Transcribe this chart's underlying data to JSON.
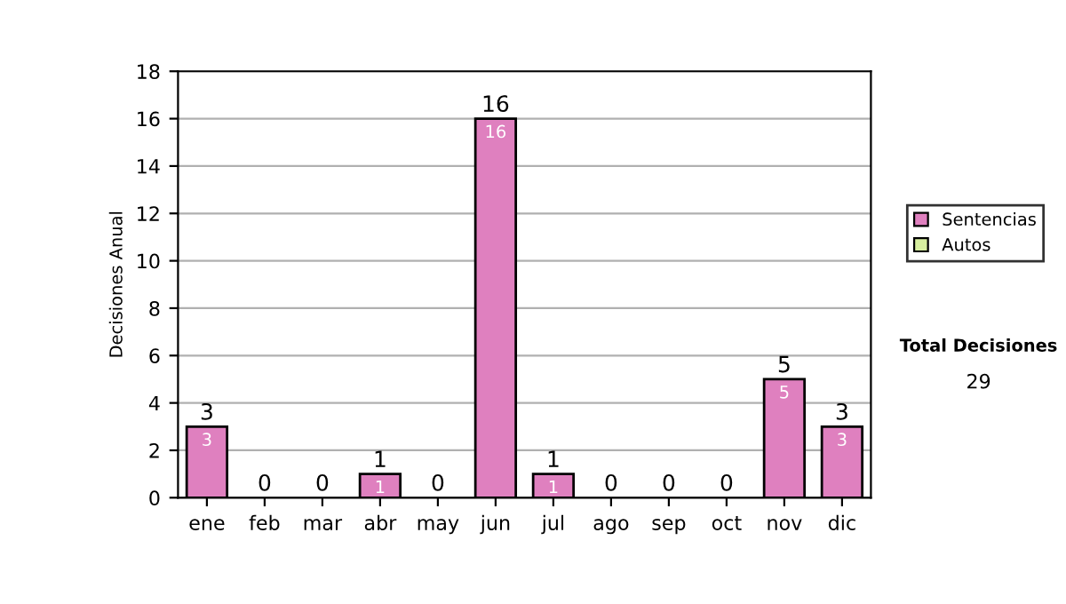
{
  "chart_data": {
    "type": "bar",
    "stacked": true,
    "ylabel": "Decisiones Anual",
    "categories": [
      "ene",
      "feb",
      "mar",
      "abr",
      "may",
      "jun",
      "jul",
      "ago",
      "sep",
      "oct",
      "nov",
      "dic"
    ],
    "series": [
      {
        "name": "Sentencias",
        "color": "#df80bf",
        "values": [
          3,
          0,
          0,
          1,
          0,
          16,
          1,
          0,
          0,
          0,
          5,
          3
        ],
        "value_labels": [
          "3",
          null,
          null,
          "1",
          null,
          "16",
          "1",
          null,
          null,
          null,
          "5",
          "3"
        ]
      },
      {
        "name": "Autos",
        "color": "#d8f0a0",
        "values": [
          0,
          0,
          0,
          0,
          0,
          0,
          0,
          0,
          0,
          0,
          0,
          0
        ]
      }
    ],
    "totals": [
      "3",
      "0",
      "0",
      "1",
      "0",
      "16",
      "1",
      "0",
      "0",
      "0",
      "5",
      "3"
    ],
    "ylim": [
      0,
      18
    ],
    "yticks": [
      0,
      2,
      4,
      6,
      8,
      10,
      12,
      14,
      16,
      18
    ],
    "grid": "y",
    "legend": "right",
    "annotations": [
      "Total Decisiones",
      "29"
    ]
  }
}
